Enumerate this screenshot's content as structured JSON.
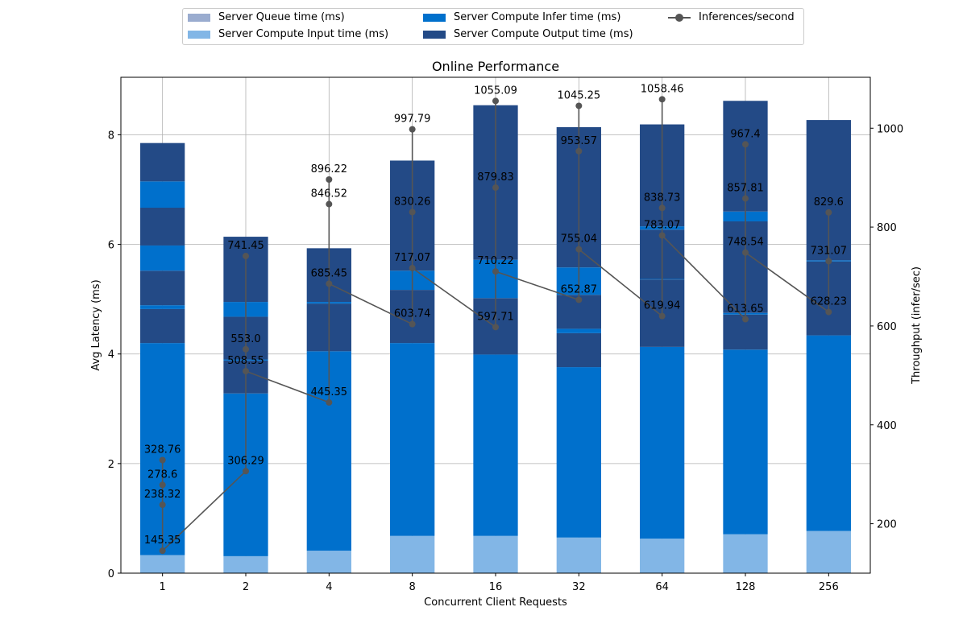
{
  "chart_data": {
    "type": "bar",
    "title": "Online Performance",
    "xlabel": "Concurrent Client Requests",
    "ylabel": "Avg Latency (ms)",
    "y2label": "Throughput (infer/sec)",
    "categories": [
      "1",
      "2",
      "4",
      "8",
      "16",
      "32",
      "64",
      "128",
      "256"
    ],
    "ylim": [
      0,
      9.05
    ],
    "y2lim": [
      100,
      1103
    ],
    "yticks": [
      0,
      2,
      4,
      6,
      8
    ],
    "y2ticks": [
      200,
      400,
      600,
      800,
      1000
    ],
    "grid": true,
    "legend_position": "top-center",
    "legend": [
      {
        "name": "Server Queue time (ms)",
        "color": "#9aaccf",
        "kind": "bar"
      },
      {
        "name": "Server Compute Input time (ms)",
        "color": "#82b6e6",
        "kind": "bar"
      },
      {
        "name": "Server Compute Infer time (ms)",
        "color": "#0070cc",
        "kind": "bar"
      },
      {
        "name": "Server Compute Output time (ms)",
        "color": "#234a86",
        "kind": "bar"
      },
      {
        "name": "Inferences/second",
        "color": "#555555",
        "kind": "line"
      }
    ],
    "stacks": [
      {
        "x": "1",
        "segments": [
          {
            "series": "Server Compute Input time (ms)",
            "bottom": 0,
            "top": 0.33
          },
          {
            "series": "Server Compute Infer time (ms)",
            "bottom": 0.33,
            "top": 4.2
          },
          {
            "series": "Server Compute Output time (ms)",
            "bottom": 4.2,
            "top": 4.82
          },
          {
            "series": "Server Compute Infer time (ms)",
            "bottom": 4.82,
            "top": 4.89
          },
          {
            "series": "Server Compute Output time (ms)",
            "bottom": 4.89,
            "top": 5.52
          },
          {
            "series": "Server Compute Infer time (ms)",
            "bottom": 5.52,
            "top": 5.98
          },
          {
            "series": "Server Compute Output time (ms)",
            "bottom": 5.98,
            "top": 6.67
          },
          {
            "series": "Server Compute Infer time (ms)",
            "bottom": 6.67,
            "top": 7.15
          },
          {
            "series": "Server Compute Output time (ms)",
            "bottom": 7.15,
            "top": 7.85
          }
        ]
      },
      {
        "x": "2",
        "segments": [
          {
            "series": "Server Compute Input time (ms)",
            "bottom": 0,
            "top": 0.31
          },
          {
            "series": "Server Compute Infer time (ms)",
            "bottom": 0.31,
            "top": 3.28
          },
          {
            "series": "Server Compute Output time (ms)",
            "bottom": 3.28,
            "top": 3.88
          },
          {
            "series": "Server Compute Infer time (ms)",
            "bottom": 3.88,
            "top": 3.9
          },
          {
            "series": "Server Compute Output time (ms)",
            "bottom": 3.9,
            "top": 4.68
          },
          {
            "series": "Server Compute Infer time (ms)",
            "bottom": 4.68,
            "top": 4.95
          },
          {
            "series": "Server Compute Output time (ms)",
            "bottom": 4.95,
            "top": 6.14
          }
        ]
      },
      {
        "x": "4",
        "segments": [
          {
            "series": "Server Compute Input time (ms)",
            "bottom": 0,
            "top": 0.41
          },
          {
            "series": "Server Compute Infer time (ms)",
            "bottom": 0.41,
            "top": 4.05
          },
          {
            "series": "Server Compute Output time (ms)",
            "bottom": 4.05,
            "top": 4.92
          },
          {
            "series": "Server Compute Infer time (ms)",
            "bottom": 4.92,
            "top": 4.95
          },
          {
            "series": "Server Compute Output time (ms)",
            "bottom": 4.95,
            "top": 5.93
          }
        ]
      },
      {
        "x": "8",
        "segments": [
          {
            "series": "Server Compute Input time (ms)",
            "bottom": 0,
            "top": 0.68
          },
          {
            "series": "Server Compute Infer time (ms)",
            "bottom": 0.68,
            "top": 4.2
          },
          {
            "series": "Server Compute Output time (ms)",
            "bottom": 4.2,
            "top": 5.17
          },
          {
            "series": "Server Compute Infer time (ms)",
            "bottom": 5.17,
            "top": 5.52
          },
          {
            "series": "Server Compute Output time (ms)",
            "bottom": 5.52,
            "top": 7.53
          }
        ]
      },
      {
        "x": "16",
        "segments": [
          {
            "series": "Server Compute Input time (ms)",
            "bottom": 0,
            "top": 0.68
          },
          {
            "series": "Server Compute Infer time (ms)",
            "bottom": 0.68,
            "top": 3.99
          },
          {
            "series": "Server Compute Output time (ms)",
            "bottom": 3.99,
            "top": 5.02
          },
          {
            "series": "Server Compute Infer time (ms)",
            "bottom": 5.02,
            "top": 5.72
          },
          {
            "series": "Server Compute Output time (ms)",
            "bottom": 5.72,
            "top": 8.54
          }
        ]
      },
      {
        "x": "32",
        "segments": [
          {
            "series": "Server Compute Input time (ms)",
            "bottom": 0,
            "top": 0.65
          },
          {
            "series": "Server Compute Infer time (ms)",
            "bottom": 0.65,
            "top": 3.76
          },
          {
            "series": "Server Compute Output time (ms)",
            "bottom": 3.76,
            "top": 4.38
          },
          {
            "series": "Server Compute Infer time (ms)",
            "bottom": 4.38,
            "top": 4.46
          },
          {
            "series": "Server Compute Output time (ms)",
            "bottom": 4.46,
            "top": 5.08
          },
          {
            "series": "Server Compute Infer time (ms)",
            "bottom": 5.08,
            "top": 5.58
          },
          {
            "series": "Server Compute Output time (ms)",
            "bottom": 5.58,
            "top": 8.14
          }
        ]
      },
      {
        "x": "64",
        "segments": [
          {
            "series": "Server Compute Input time (ms)",
            "bottom": 0,
            "top": 0.63
          },
          {
            "series": "Server Compute Infer time (ms)",
            "bottom": 0.63,
            "top": 4.13
          },
          {
            "series": "Server Compute Output time (ms)",
            "bottom": 4.13,
            "top": 5.36
          },
          {
            "series": "Server Compute Infer time (ms)",
            "bottom": 5.36,
            "top": 5.37
          },
          {
            "series": "Server Compute Output time (ms)",
            "bottom": 5.37,
            "top": 6.27
          },
          {
            "series": "Server Compute Infer time (ms)",
            "bottom": 6.27,
            "top": 6.33
          },
          {
            "series": "Server Compute Output time (ms)",
            "bottom": 6.33,
            "top": 8.19
          }
        ]
      },
      {
        "x": "128",
        "segments": [
          {
            "series": "Server Compute Input time (ms)",
            "bottom": 0,
            "top": 0.71
          },
          {
            "series": "Server Compute Infer time (ms)",
            "bottom": 0.71,
            "top": 4.08
          },
          {
            "series": "Server Compute Output time (ms)",
            "bottom": 4.08,
            "top": 4.72
          },
          {
            "series": "Server Compute Infer time (ms)",
            "bottom": 4.72,
            "top": 4.75
          },
          {
            "series": "Server Compute Output time (ms)",
            "bottom": 4.75,
            "top": 6.42
          },
          {
            "series": "Server Compute Infer time (ms)",
            "bottom": 6.42,
            "top": 6.6
          },
          {
            "series": "Server Compute Output time (ms)",
            "bottom": 6.6,
            "top": 8.62
          }
        ]
      },
      {
        "x": "256",
        "segments": [
          {
            "series": "Server Compute Input time (ms)",
            "bottom": 0,
            "top": 0.77
          },
          {
            "series": "Server Compute Infer time (ms)",
            "bottom": 0.77,
            "top": 4.34
          },
          {
            "series": "Server Compute Output time (ms)",
            "bottom": 4.34,
            "top": 5.69
          },
          {
            "series": "Server Compute Infer time (ms)",
            "bottom": 5.69,
            "top": 5.71
          },
          {
            "series": "Server Compute Output time (ms)",
            "bottom": 5.71,
            "top": 8.27
          }
        ]
      }
    ],
    "throughput": [
      {
        "x": "1",
        "values": [
          328.76,
          278.6,
          238.32,
          145.35
        ]
      },
      {
        "x": "2",
        "values": [
          306.29,
          741.45,
          553.0,
          508.55
        ]
      },
      {
        "x": "4",
        "values": [
          445.35,
          896.22,
          846.52,
          685.45
        ]
      },
      {
        "x": "8",
        "values": [
          603.74,
          997.79,
          830.26,
          717.07
        ]
      },
      {
        "x": "16",
        "values": [
          597.71,
          1055.09,
          879.83,
          710.22
        ]
      },
      {
        "x": "32",
        "values": [
          652.87,
          1045.25,
          953.57,
          755.04
        ]
      },
      {
        "x": "64",
        "values": [
          619.94,
          1058.46,
          838.73,
          783.07
        ]
      },
      {
        "x": "128",
        "values": [
          613.65,
          967.4,
          857.81,
          748.54
        ]
      },
      {
        "x": "256",
        "values": [
          628.23,
          829.6,
          731.07
        ]
      }
    ],
    "throughput_label_order": [
      [
        "328.76",
        "278.6",
        "238.32",
        "145.35"
      ],
      [
        "306.29",
        "741.45",
        "553.0",
        "508.55"
      ],
      [
        "445.35",
        "896.22",
        "846.52",
        "685.45"
      ],
      [
        "603.74",
        "997.79",
        "830.26",
        "717.07"
      ],
      [
        "597.71",
        "1055.09",
        "879.83",
        "710.22"
      ],
      [
        "652.87",
        "1045.25",
        "953.57",
        "755.04"
      ],
      [
        "619.94",
        "1058.46",
        "838.73",
        "783.07"
      ],
      [
        "613.65",
        "967.4",
        "857.81",
        "748.54"
      ],
      [
        "628.23",
        "829.6",
        "731.07"
      ]
    ]
  }
}
